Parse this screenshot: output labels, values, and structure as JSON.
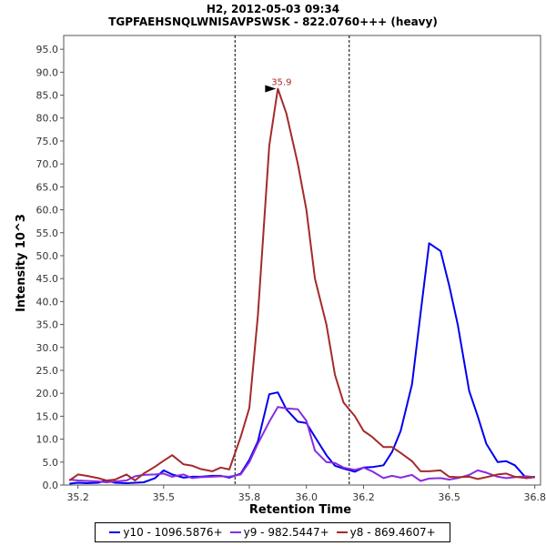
{
  "chart_data": {
    "type": "line",
    "title": "H2, 2012-05-03 09:34",
    "subtitle": "TGPFAEHSNQLWNISAVPSWSK - 822.0760+++ (heavy)",
    "xlabel": "Retention Time",
    "ylabel": "Intensity 10^3",
    "xlim": [
      35.15,
      36.82
    ],
    "ylim": [
      0,
      98
    ],
    "x_ticks": [
      "35.2",
      "35.5",
      "35.8",
      "36.0",
      "36.2",
      "36.5",
      "36.8"
    ],
    "y_ticks": [
      "0.0",
      "5.0",
      "10.0",
      "15.0",
      "20.0",
      "25.0",
      "30.0",
      "35.0",
      "40.0",
      "45.0",
      "50.0",
      "55.0",
      "60.0",
      "65.0",
      "70.0",
      "75.0",
      "80.0",
      "85.0",
      "90.0",
      "95.0"
    ],
    "vlines": [
      35.75,
      36.15
    ],
    "peak_label": {
      "text": "35.9",
      "x": 35.9,
      "y": 86.4
    },
    "grid": false,
    "legend_position": "bottom",
    "series": [
      {
        "name": "y10 - 1096.5876+",
        "color": "#0000ee",
        "points": [
          [
            35.17,
            0.3
          ],
          [
            35.2,
            0.5
          ],
          [
            35.23,
            0.4
          ],
          [
            35.27,
            0.5
          ],
          [
            35.3,
            1.0
          ],
          [
            35.33,
            0.5
          ],
          [
            35.37,
            0.4
          ],
          [
            35.4,
            0.5
          ],
          [
            35.43,
            0.6
          ],
          [
            35.47,
            1.5
          ],
          [
            35.5,
            3.2
          ],
          [
            35.53,
            2.3
          ],
          [
            35.57,
            1.6
          ],
          [
            35.6,
            1.8
          ],
          [
            35.63,
            1.8
          ],
          [
            35.67,
            2.0
          ],
          [
            35.7,
            2.0
          ],
          [
            35.73,
            1.6
          ],
          [
            35.77,
            2.5
          ],
          [
            35.8,
            5.5
          ],
          [
            35.83,
            9.5
          ],
          [
            35.87,
            19.8
          ],
          [
            35.9,
            20.2
          ],
          [
            35.93,
            16.5
          ],
          [
            35.97,
            13.8
          ],
          [
            36.0,
            13.5
          ],
          [
            36.03,
            10.5
          ],
          [
            36.07,
            6.5
          ],
          [
            36.1,
            4.2
          ],
          [
            36.13,
            3.6
          ],
          [
            36.17,
            2.9
          ],
          [
            36.2,
            3.8
          ],
          [
            36.23,
            3.9
          ],
          [
            36.27,
            4.3
          ],
          [
            36.3,
            7.2
          ],
          [
            36.33,
            11.8
          ],
          [
            36.37,
            22.0
          ],
          [
            36.4,
            37.5
          ],
          [
            36.43,
            52.7
          ],
          [
            36.47,
            51.0
          ],
          [
            36.5,
            43.5
          ],
          [
            36.53,
            35.0
          ],
          [
            36.57,
            20.5
          ],
          [
            36.6,
            15.0
          ],
          [
            36.63,
            9.0
          ],
          [
            36.67,
            5.0
          ],
          [
            36.7,
            5.2
          ],
          [
            36.73,
            4.3
          ],
          [
            36.77,
            1.5
          ],
          [
            36.8,
            1.8
          ]
        ]
      },
      {
        "name": "y9 - 982.5447+",
        "color": "#8a2be2",
        "points": [
          [
            35.17,
            1.2
          ],
          [
            35.2,
            1.0
          ],
          [
            35.23,
            0.9
          ],
          [
            35.27,
            0.8
          ],
          [
            35.3,
            0.6
          ],
          [
            35.33,
            0.8
          ],
          [
            35.37,
            1.0
          ],
          [
            35.4,
            1.9
          ],
          [
            35.43,
            2.2
          ],
          [
            35.47,
            2.3
          ],
          [
            35.5,
            2.5
          ],
          [
            35.53,
            1.8
          ],
          [
            35.57,
            2.3
          ],
          [
            35.6,
            1.5
          ],
          [
            35.63,
            1.7
          ],
          [
            35.67,
            1.8
          ],
          [
            35.7,
            1.9
          ],
          [
            35.73,
            1.8
          ],
          [
            35.77,
            2.3
          ],
          [
            35.8,
            5.0
          ],
          [
            35.83,
            9.0
          ],
          [
            35.87,
            13.8
          ],
          [
            35.9,
            17.0
          ],
          [
            35.93,
            16.7
          ],
          [
            35.97,
            16.5
          ],
          [
            36.0,
            14.0
          ],
          [
            36.03,
            7.5
          ],
          [
            36.07,
            5.0
          ],
          [
            36.1,
            4.8
          ],
          [
            36.13,
            3.8
          ],
          [
            36.17,
            3.3
          ],
          [
            36.2,
            3.8
          ],
          [
            36.23,
            3.0
          ],
          [
            36.27,
            1.5
          ],
          [
            36.3,
            2.0
          ],
          [
            36.33,
            1.6
          ],
          [
            36.37,
            2.2
          ],
          [
            36.4,
            0.9
          ],
          [
            36.43,
            1.4
          ],
          [
            36.47,
            1.5
          ],
          [
            36.5,
            1.2
          ],
          [
            36.53,
            1.5
          ],
          [
            36.57,
            2.2
          ],
          [
            36.6,
            3.2
          ],
          [
            36.63,
            2.7
          ],
          [
            36.67,
            1.8
          ],
          [
            36.7,
            1.5
          ],
          [
            36.73,
            1.7
          ],
          [
            36.77,
            1.9
          ],
          [
            36.8,
            1.7
          ]
        ]
      },
      {
        "name": "y8 - 869.4607+",
        "color": "#a52a2a",
        "points": [
          [
            35.17,
            1.0
          ],
          [
            35.2,
            2.3
          ],
          [
            35.23,
            2.0
          ],
          [
            35.27,
            1.5
          ],
          [
            35.3,
            1.0
          ],
          [
            35.33,
            1.2
          ],
          [
            35.37,
            2.3
          ],
          [
            35.4,
            1.0
          ],
          [
            35.43,
            2.5
          ],
          [
            35.47,
            4.0
          ],
          [
            35.5,
            5.3
          ],
          [
            35.53,
            6.5
          ],
          [
            35.57,
            4.5
          ],
          [
            35.6,
            4.2
          ],
          [
            35.63,
            3.5
          ],
          [
            35.67,
            3.0
          ],
          [
            35.7,
            3.8
          ],
          [
            35.73,
            3.4
          ],
          [
            35.77,
            10.5
          ],
          [
            35.8,
            16.8
          ],
          [
            35.83,
            37.0
          ],
          [
            35.87,
            74.0
          ],
          [
            35.9,
            86.4
          ],
          [
            35.93,
            81.0
          ],
          [
            35.97,
            70.0
          ],
          [
            36.0,
            60.0
          ],
          [
            36.03,
            45.0
          ],
          [
            36.07,
            35.0
          ],
          [
            36.1,
            24.0
          ],
          [
            36.13,
            18.0
          ],
          [
            36.17,
            15.0
          ],
          [
            36.2,
            11.8
          ],
          [
            36.23,
            10.5
          ],
          [
            36.27,
            8.3
          ],
          [
            36.3,
            8.3
          ],
          [
            36.33,
            7.0
          ],
          [
            36.37,
            5.2
          ],
          [
            36.4,
            3.0
          ],
          [
            36.43,
            3.0
          ],
          [
            36.47,
            3.2
          ],
          [
            36.5,
            1.8
          ],
          [
            36.53,
            1.7
          ],
          [
            36.57,
            1.8
          ],
          [
            36.6,
            1.3
          ],
          [
            36.63,
            1.7
          ],
          [
            36.67,
            2.3
          ],
          [
            36.7,
            2.5
          ],
          [
            36.73,
            1.8
          ],
          [
            36.77,
            1.5
          ],
          [
            36.8,
            1.7
          ]
        ]
      }
    ]
  }
}
